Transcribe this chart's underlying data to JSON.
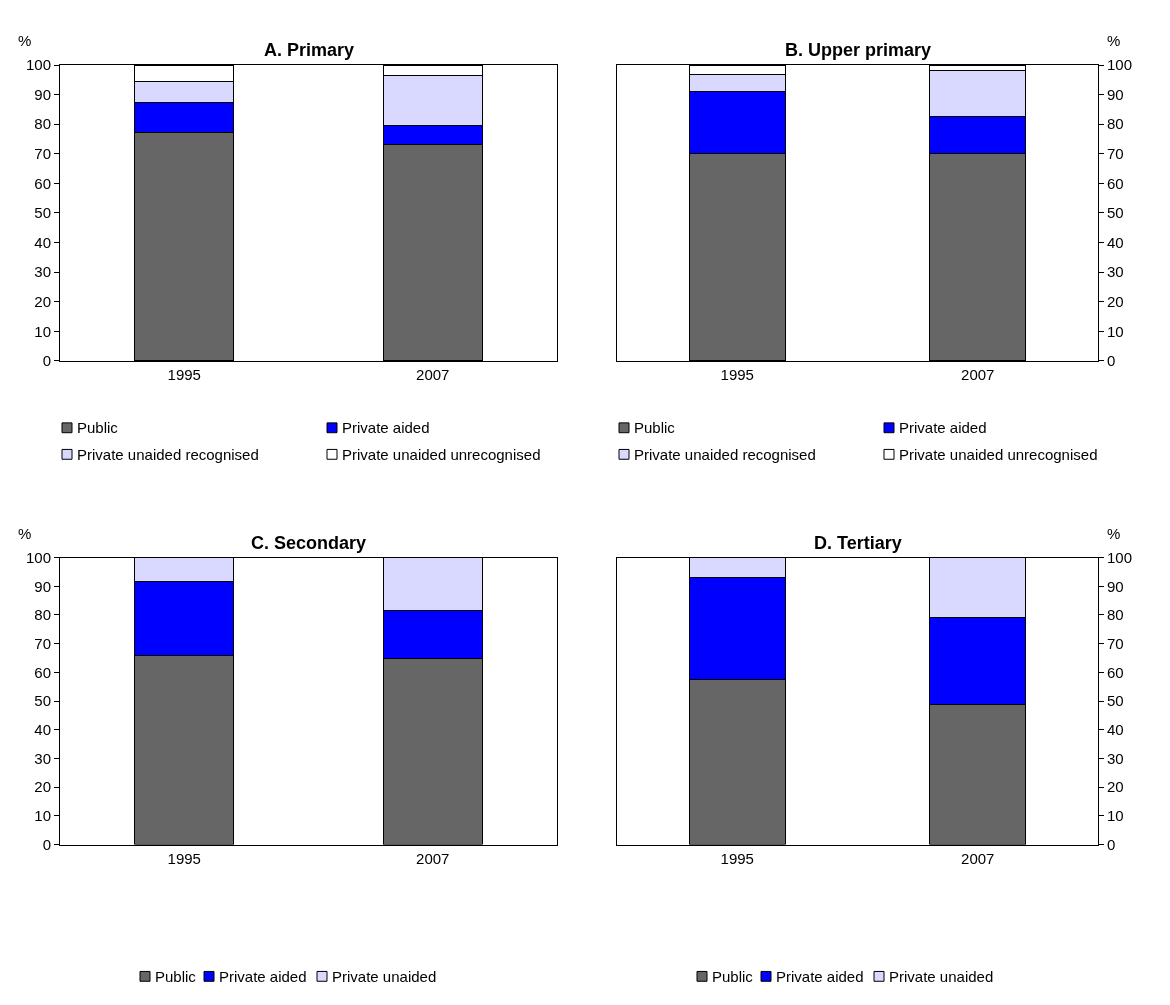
{
  "chart_data": [
    {
      "type": "bar",
      "stacked": true,
      "title": "A. Primary",
      "ylabel": "%",
      "categories": [
        "1995",
        "2007"
      ],
      "series": [
        {
          "name": "Public",
          "color": "#666666",
          "values": [
            77.3,
            73
          ]
        },
        {
          "name": "Private aided",
          "color": "#0000ff",
          "values": [
            10.2,
            6.5
          ]
        },
        {
          "name": "Private unaided recognised",
          "color": "#d9d9ff",
          "values": [
            6.8,
            17
          ]
        },
        {
          "name": "Private unaided unrecognised",
          "color": "#ffffff",
          "values": [
            5.7,
            3.5
          ]
        }
      ],
      "ylim": [
        0,
        100
      ],
      "yticks": [
        0,
        10,
        20,
        30,
        40,
        50,
        60,
        70,
        80,
        90,
        100
      ],
      "grid": false,
      "legend": "bottom"
    },
    {
      "type": "bar",
      "stacked": true,
      "title": "B. Upper primary",
      "ylabel": "%",
      "categories": [
        "1995",
        "2007"
      ],
      "series": [
        {
          "name": "Public",
          "color": "#666666",
          "values": [
            70.2,
            70.2
          ]
        },
        {
          "name": "Private aided",
          "color": "#0000ff",
          "values": [
            21,
            12.4
          ]
        },
        {
          "name": "Private unaided recognised",
          "color": "#d9d9ff",
          "values": [
            5.7,
            15.6
          ]
        },
        {
          "name": "Private unaided unrecognised",
          "color": "#ffffff",
          "values": [
            3.1,
            1.8
          ]
        }
      ],
      "ylim": [
        0,
        100
      ],
      "yticks": [
        0,
        10,
        20,
        30,
        40,
        50,
        60,
        70,
        80,
        90,
        100
      ],
      "grid": false,
      "legend": "bottom"
    },
    {
      "type": "bar",
      "stacked": true,
      "title": "C. Secondary",
      "ylabel": "%",
      "categories": [
        "1995",
        "2007"
      ],
      "series": [
        {
          "name": "Public",
          "color": "#666666",
          "values": [
            66,
            64.8
          ]
        },
        {
          "name": "Private aided",
          "color": "#0000ff",
          "values": [
            25.7,
            16.7
          ]
        },
        {
          "name": "Private unaided",
          "color": "#d9d9ff",
          "values": [
            8.3,
            18.5
          ]
        }
      ],
      "ylim": [
        0,
        100
      ],
      "yticks": [
        0,
        10,
        20,
        30,
        40,
        50,
        60,
        70,
        80,
        90,
        100
      ],
      "grid": false,
      "legend": "bottom"
    },
    {
      "type": "bar",
      "stacked": true,
      "title": "D. Tertiary",
      "ylabel": "%",
      "categories": [
        "1995",
        "2007"
      ],
      "series": [
        {
          "name": "Public",
          "color": "#666666",
          "values": [
            57.5,
            48.9
          ]
        },
        {
          "name": "Private aided",
          "color": "#0000ff",
          "values": [
            35.4,
            30.3
          ]
        },
        {
          "name": "Private unaided",
          "color": "#d9d9ff",
          "values": [
            7.1,
            20.8
          ]
        }
      ],
      "ylim": [
        0,
        100
      ],
      "yticks": [
        0,
        10,
        20,
        30,
        40,
        50,
        60,
        70,
        80,
        90,
        100
      ],
      "grid": false,
      "legend": "bottom"
    }
  ]
}
